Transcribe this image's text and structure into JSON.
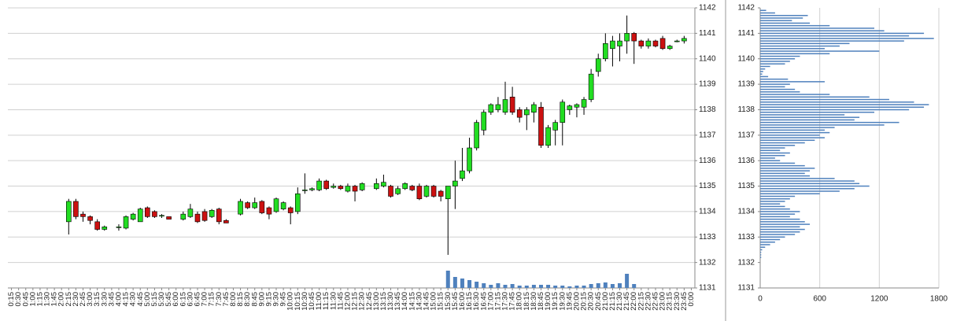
{
  "chart_data": [
    {
      "type": "candlestick",
      "x": [
        "0:15",
        "0:30",
        "0:45",
        "1:00",
        "1:15",
        "1:30",
        "1:45",
        "2:00",
        "2:15",
        "2:30",
        "2:45",
        "3:00",
        "3:15",
        "3:30",
        "3:45",
        "4:00",
        "4:15",
        "4:30",
        "4:45",
        "5:00",
        "5:15",
        "5:30",
        "5:45",
        "6:00",
        "6:15",
        "6:30",
        "6:45",
        "7:00",
        "7:15",
        "7:30",
        "7:45",
        "8:00",
        "8:15",
        "8:30",
        "8:45",
        "9:00",
        "9:15",
        "9:30",
        "9:45",
        "10:00",
        "10:15",
        "10:30",
        "10:45",
        "11:00",
        "11:15",
        "11:30",
        "11:45",
        "12:00",
        "12:15",
        "12:30",
        "12:45",
        "13:00",
        "13:15",
        "13:30",
        "13:45",
        "14:00",
        "14:15",
        "14:30",
        "14:45",
        "15:00",
        "15:15",
        "15:30",
        "15:45",
        "16:00",
        "16:15",
        "16:30",
        "16:45",
        "17:00",
        "17:15",
        "17:30",
        "17:45",
        "18:00",
        "18:15",
        "18:30",
        "18:45",
        "19:00",
        "19:15",
        "19:30",
        "19:45",
        "20:00",
        "20:15",
        "20:30",
        "20:45",
        "21:00",
        "21:15",
        "21:30",
        "21:45",
        "22:00",
        "22:15",
        "22:30",
        "22:45",
        "23:00",
        "23:15",
        "23:30",
        "23:45",
        "0:00"
      ],
      "open": [
        null,
        null,
        null,
        null,
        null,
        null,
        null,
        null,
        1133.6,
        1134.4,
        1133.9,
        1133.8,
        1133.6,
        1133.3,
        null,
        1133.4,
        1133.35,
        1133.7,
        1133.6,
        1134.15,
        1134.0,
        1133.85,
        1133.8,
        null,
        1133.7,
        1133.8,
        1133.9,
        1134.0,
        1133.8,
        1134.1,
        1133.65,
        null,
        1133.9,
        1134.35,
        1134.15,
        1134.4,
        1134.15,
        1134.0,
        1134.1,
        1134.15,
        1134.0,
        1134.85,
        1134.85,
        1134.85,
        1135.2,
        1134.95,
        1135.0,
        1134.8,
        1135.0,
        1134.85,
        null,
        1134.9,
        1135.0,
        1135.0,
        1134.7,
        1134.9,
        1135.0,
        1135.0,
        1134.6,
        1135.0,
        1134.8,
        1134.5,
        1135.0,
        1135.3,
        1135.6,
        1136.5,
        1137.2,
        1137.9,
        1138.0,
        1137.9,
        1138.5,
        1138.0,
        1137.8,
        1137.9,
        1138.1,
        1136.6,
        1137.2,
        1137.5,
        1138.0,
        1138.1,
        1138.1,
        1138.4,
        1139.5,
        1140.0,
        1140.4,
        1140.5,
        1140.7,
        1141.0,
        1140.7,
        1140.5,
        1140.7,
        1140.8,
        1140.4,
        1140.7,
        1140.7,
        null
      ],
      "high": [
        null,
        null,
        null,
        null,
        null,
        null,
        null,
        null,
        1134.5,
        1134.5,
        1134.0,
        1133.85,
        1133.7,
        1133.45,
        null,
        1133.5,
        1133.85,
        1133.95,
        1134.15,
        1134.2,
        1134.05,
        1133.9,
        1133.8,
        null,
        1134.0,
        1134.3,
        1134.0,
        1134.1,
        1134.1,
        1134.15,
        1133.7,
        null,
        1134.5,
        1134.4,
        1134.55,
        1134.45,
        1134.2,
        1134.55,
        1134.4,
        1134.2,
        1134.95,
        1135.5,
        1134.95,
        1135.3,
        1135.25,
        1135.1,
        1135.05,
        1135.1,
        1135.05,
        1135.15,
        null,
        1135.3,
        1135.45,
        1135.05,
        1135.0,
        1135.15,
        1135.05,
        1135.1,
        1135.05,
        1135.05,
        1134.85,
        1135.0,
        1136.0,
        1136.5,
        1136.9,
        1137.6,
        1138.0,
        1138.25,
        1138.5,
        1139.1,
        1138.9,
        1138.1,
        1138.1,
        1138.3,
        1138.3,
        1137.4,
        1137.6,
        1138.4,
        1138.2,
        1138.25,
        1138.5,
        1139.6,
        1140.2,
        1141.0,
        1140.9,
        1141.0,
        1141.7,
        1141.05,
        1140.75,
        1140.8,
        1140.75,
        1140.9,
        1140.55,
        1140.75,
        1140.9,
        null
      ],
      "low": [
        null,
        null,
        null,
        null,
        null,
        null,
        null,
        null,
        1133.1,
        1133.7,
        1133.6,
        1133.5,
        1133.25,
        1133.25,
        null,
        1133.25,
        1133.3,
        1133.65,
        1133.6,
        1133.75,
        1133.75,
        1133.75,
        1133.7,
        null,
        1133.65,
        1133.75,
        1133.55,
        1133.6,
        1133.75,
        1133.5,
        1133.55,
        null,
        1133.85,
        1134.1,
        1134.1,
        1133.9,
        1133.7,
        1133.95,
        1134.05,
        1133.5,
        1133.9,
        1134.7,
        1134.8,
        1134.8,
        1134.85,
        1134.9,
        1134.85,
        1134.75,
        1134.4,
        1134.8,
        null,
        1134.85,
        1134.95,
        1134.55,
        1134.65,
        1134.85,
        1134.8,
        1134.45,
        1134.55,
        1134.55,
        1134.4,
        1132.3,
        1134.1,
        1135.2,
        1135.5,
        1136.4,
        1137.0,
        1137.8,
        1137.9,
        1137.8,
        1137.8,
        1137.5,
        1137.2,
        1137.5,
        1136.5,
        1136.5,
        1136.6,
        1136.6,
        1137.8,
        1137.7,
        1137.8,
        1138.3,
        1139.3,
        1139.9,
        1139.7,
        1139.9,
        1140.2,
        1139.8,
        1140.4,
        1140.4,
        1140.45,
        1140.35,
        1140.35,
        1140.65,
        1140.6,
        null
      ],
      "close": [
        null,
        null,
        null,
        null,
        null,
        null,
        null,
        null,
        1134.4,
        1133.8,
        1133.8,
        1133.65,
        1133.3,
        1133.4,
        null,
        1133.4,
        1133.8,
        1133.9,
        1134.1,
        1133.8,
        1133.8,
        1133.85,
        1133.7,
        null,
        1133.9,
        1134.1,
        1133.6,
        1133.65,
        1134.05,
        1133.6,
        1133.55,
        null,
        1134.4,
        1134.15,
        1134.35,
        1133.95,
        1133.9,
        1134.5,
        1134.35,
        1133.95,
        1134.7,
        1134.85,
        1134.9,
        1135.2,
        1134.9,
        1135.0,
        1134.9,
        1135.0,
        1134.8,
        1135.1,
        null,
        1135.1,
        1135.15,
        1134.6,
        1134.9,
        1135.1,
        1134.85,
        1134.5,
        1135.0,
        1134.6,
        1134.6,
        1135.0,
        1135.2,
        1135.6,
        1136.5,
        1137.5,
        1137.9,
        1138.2,
        1138.2,
        1138.4,
        1137.9,
        1137.7,
        1138.0,
        1138.2,
        1136.6,
        1137.3,
        1137.5,
        1138.3,
        1138.15,
        1138.2,
        1138.4,
        1139.4,
        1140.0,
        1140.6,
        1140.7,
        1140.7,
        1141.0,
        1140.7,
        1140.5,
        1140.7,
        1140.5,
        1140.4,
        1140.5,
        1140.7,
        1140.8,
        null
      ],
      "volume": [
        null,
        null,
        null,
        null,
        null,
        null,
        null,
        null,
        null,
        null,
        null,
        null,
        null,
        null,
        null,
        null,
        null,
        null,
        null,
        null,
        null,
        null,
        null,
        null,
        null,
        null,
        null,
        null,
        null,
        null,
        null,
        null,
        null,
        null,
        null,
        null,
        null,
        null,
        null,
        null,
        null,
        null,
        null,
        null,
        null,
        null,
        null,
        null,
        null,
        null,
        null,
        null,
        null,
        null,
        null,
        null,
        null,
        null,
        null,
        null,
        null,
        22,
        14,
        12,
        10,
        8,
        6,
        4,
        6,
        4,
        5,
        3,
        3,
        4,
        4,
        4,
        3,
        3,
        2,
        3,
        3,
        5,
        6,
        7,
        5,
        6,
        18,
        5,
        null,
        null,
        null,
        null,
        null,
        null,
        null,
        null
      ],
      "up_color": "#22dd22",
      "down_color": "#cc1111",
      "volume_color": "#4f81bd",
      "ylim": [
        1131,
        1142
      ],
      "yticks": [
        1131,
        1132,
        1133,
        1134,
        1135,
        1136,
        1137,
        1138,
        1139,
        1140,
        1141,
        1142
      ],
      "grid": true
    },
    {
      "type": "bar",
      "orientation": "horizontal",
      "prices": [
        1141.9,
        1141.8,
        1141.7,
        1141.6,
        1141.5,
        1141.4,
        1141.3,
        1141.2,
        1141.1,
        1141.0,
        1140.9,
        1140.8,
        1140.7,
        1140.6,
        1140.5,
        1140.4,
        1140.3,
        1140.2,
        1140.1,
        1140.0,
        1139.9,
        1139.8,
        1139.7,
        1139.6,
        1139.5,
        1139.4,
        1139.3,
        1139.2,
        1139.1,
        1139.0,
        1138.9,
        1138.8,
        1138.7,
        1138.6,
        1138.5,
        1138.4,
        1138.3,
        1138.2,
        1138.1,
        1138.0,
        1137.9,
        1137.8,
        1137.7,
        1137.6,
        1137.5,
        1137.4,
        1137.3,
        1137.2,
        1137.1,
        1137.0,
        1136.9,
        1136.8,
        1136.7,
        1136.6,
        1136.5,
        1136.4,
        1136.3,
        1136.2,
        1136.1,
        1136.0,
        1135.9,
        1135.8,
        1135.7,
        1135.6,
        1135.5,
        1135.4,
        1135.3,
        1135.2,
        1135.1,
        1135.0,
        1134.9,
        1134.8,
        1134.7,
        1134.6,
        1134.5,
        1134.4,
        1134.3,
        1134.2,
        1134.1,
        1134.0,
        1133.9,
        1133.8,
        1133.7,
        1133.6,
        1133.5,
        1133.4,
        1133.3,
        1133.2,
        1133.1,
        1133.0,
        1132.9,
        1132.8,
        1132.7,
        1132.6,
        1132.5,
        1132.4,
        1132.3,
        1132.2
      ],
      "values": [
        60,
        150,
        480,
        430,
        320,
        500,
        700,
        1150,
        1250,
        1650,
        1500,
        1750,
        1450,
        900,
        800,
        650,
        1200,
        700,
        400,
        350,
        300,
        250,
        100,
        50,
        30,
        20,
        80,
        280,
        650,
        300,
        250,
        350,
        400,
        700,
        1100,
        1300,
        1550,
        1700,
        1650,
        1500,
        1150,
        850,
        1000,
        950,
        1400,
        1250,
        750,
        650,
        700,
        600,
        650,
        550,
        450,
        350,
        250,
        200,
        300,
        250,
        150,
        200,
        350,
        450,
        550,
        500,
        450,
        500,
        750,
        950,
        1000,
        1100,
        950,
        800,
        600,
        350,
        300,
        250,
        200,
        250,
        300,
        400,
        350,
        300,
        400,
        450,
        500,
        400,
        450,
        400,
        350,
        250,
        200,
        150,
        100,
        50,
        20,
        10,
        10,
        10
      ],
      "color": "#4f81bd",
      "xlim": [
        0,
        1800
      ],
      "xticks": [
        0,
        600,
        1200,
        1800
      ],
      "ylim": [
        1131,
        1142
      ],
      "yticks": [
        1131,
        1132,
        1133,
        1134,
        1135,
        1136,
        1137,
        1138,
        1139,
        1140,
        1141,
        1142
      ],
      "grid": true
    }
  ]
}
